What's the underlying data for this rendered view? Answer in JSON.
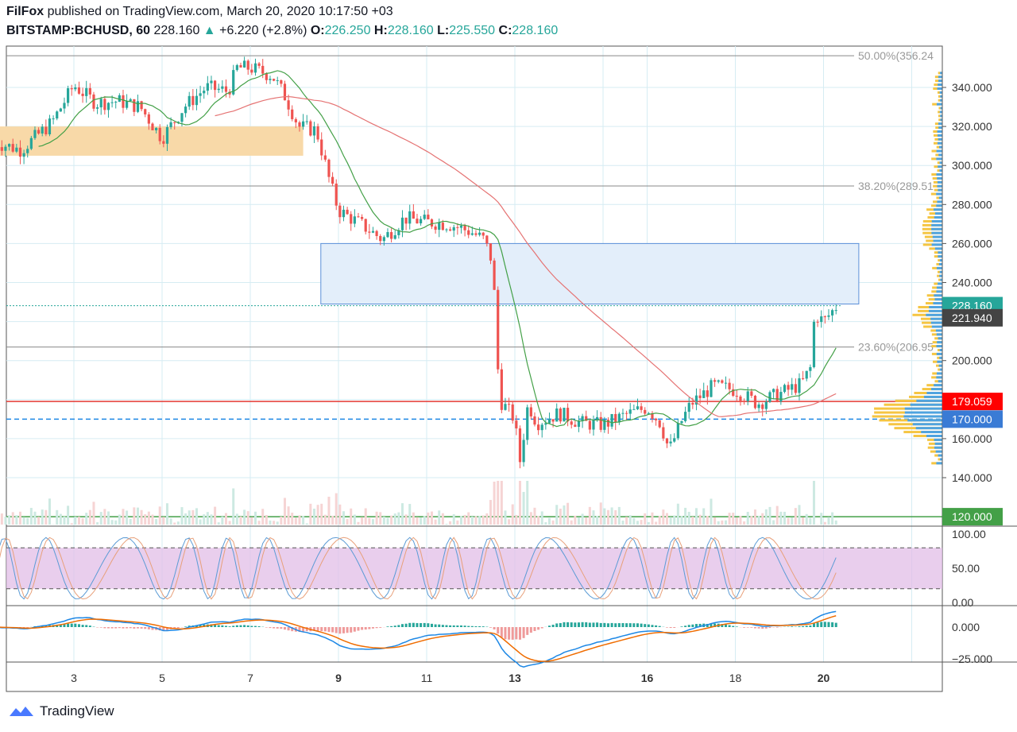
{
  "header": {
    "author": "FilFox",
    "published": "published on TradingView.com, March 20, 2020 10:17:50 +03",
    "symbol": "BITSTAMP:BCHUSD, 60",
    "last": "228.160",
    "change": "+6.220 (+2.8%)",
    "o_label": "O:",
    "o": "226.250",
    "h_label": "H:",
    "h": "228.160",
    "l_label": "L:",
    "l": "225.550",
    "c_label": "C:",
    "c": "228.160"
  },
  "brand": "TradingView",
  "colors": {
    "up": "#26a69a",
    "down": "#ef5350",
    "rsi_bg": "#e1bee7",
    "zone_orange": "#f8d9a8",
    "zone_blue": "#e3eefa"
  },
  "chart_data": {
    "type": "candlestick",
    "x_ticks": [
      "3",
      "5",
      "7",
      "9",
      "11",
      "13",
      "16",
      "18",
      "20"
    ],
    "x_tick_days": [
      3,
      5,
      7,
      9,
      11,
      13,
      16,
      18,
      20
    ],
    "y_ticks": [
      "340.000",
      "320.000",
      "300.000",
      "280.000",
      "260.000",
      "240.000",
      "200.000",
      "160.000",
      "140.000"
    ],
    "y_tick_values": [
      340,
      320,
      300,
      280,
      260,
      240,
      200,
      160,
      140
    ],
    "price_keypoints": [
      [
        1.2,
        312
      ],
      [
        1.8,
        308
      ],
      [
        2.5,
        322
      ],
      [
        3,
        341
      ],
      [
        3.5,
        332
      ],
      [
        4,
        333
      ],
      [
        4.5,
        330
      ],
      [
        5,
        314
      ],
      [
        5.5,
        330
      ],
      [
        6,
        340
      ],
      [
        6.5,
        338
      ],
      [
        6.7,
        350
      ],
      [
        7,
        350
      ],
      [
        7.5,
        346
      ],
      [
        7.8,
        335
      ],
      [
        8.1,
        320
      ],
      [
        8.5,
        318
      ],
      [
        8.8,
        292
      ],
      [
        9,
        277
      ],
      [
        9.5,
        270
      ],
      [
        10,
        262
      ],
      [
        10.5,
        273
      ],
      [
        11,
        271
      ],
      [
        11.5,
        270
      ],
      [
        12,
        266
      ],
      [
        12.3,
        262
      ],
      [
        12.5,
        250
      ],
      [
        12.65,
        180
      ],
      [
        13,
        170
      ],
      [
        13.1,
        146
      ],
      [
        13.3,
        178
      ],
      [
        13.5,
        168
      ],
      [
        14,
        173
      ],
      [
        14.5,
        168
      ],
      [
        15,
        167
      ],
      [
        15.5,
        172
      ],
      [
        16,
        176
      ],
      [
        16.3,
        168
      ],
      [
        16.5,
        154
      ],
      [
        16.8,
        170
      ],
      [
        17,
        178
      ],
      [
        17.5,
        187
      ],
      [
        18,
        185
      ],
      [
        18.5,
        178
      ],
      [
        19,
        183
      ],
      [
        19.5,
        188
      ],
      [
        19.7,
        196
      ],
      [
        19.8,
        224
      ],
      [
        20,
        220
      ],
      [
        20.3,
        228
      ]
    ],
    "fib_levels": [
      {
        "label": "50.00%(356.24",
        "value": 356.24
      },
      {
        "label": "38.20%(289.51",
        "value": 289.51
      },
      {
        "label": "23.60%(206.95",
        "value": 206.95
      }
    ],
    "price_labels": [
      {
        "text": "228.160",
        "value": 228.16,
        "color": "#26a69a"
      },
      {
        "text": "221.940",
        "value": 221.94,
        "color": "#444"
      },
      {
        "text": "179.059",
        "value": 179.059,
        "color": "#ff0000"
      },
      {
        "text": "170.000",
        "value": 170,
        "color": "#3a7bd5"
      },
      {
        "text": "120.000",
        "value": 120,
        "color": "#43a047"
      }
    ],
    "zones": [
      {
        "from_day": 1,
        "to_day": 8.2,
        "low": 305,
        "high": 320,
        "color": "orange"
      },
      {
        "from_day": 8.6,
        "to_day": 20.8,
        "low": 229,
        "high": 260,
        "color": "blue"
      }
    ],
    "horizontal_lines": [
      {
        "value": 179.059,
        "color": "#e53935"
      },
      {
        "value": 170,
        "color": "#1e88e5",
        "dashed": true
      },
      {
        "value": 120,
        "color": "#43a047"
      }
    ],
    "stoch_ticks": [
      "100.00",
      "50.00",
      "0.00"
    ],
    "stoch_levels": [
      80,
      20
    ],
    "macd_ticks": [
      "0.000",
      "−25.000"
    ]
  }
}
